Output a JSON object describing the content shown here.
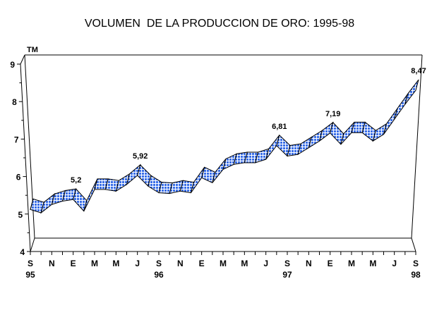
{
  "chart_data": {
    "type": "area",
    "title": "VOLUMEN  DE LA PRODUCCION DE ORO: 1995-98",
    "ylabel": "TM",
    "xlabel": "",
    "ylim": [
      4,
      9
    ],
    "yticks": [
      "4",
      "5",
      "6",
      "7",
      "8",
      "9"
    ],
    "x_month_labels": [
      "S",
      "N",
      "E",
      "M",
      "M",
      "J",
      "S",
      "N",
      "E",
      "M",
      "M",
      "J",
      "S",
      "N",
      "E",
      "M",
      "M",
      "J",
      "S"
    ],
    "x_year_labels": [
      {
        "at": 0,
        "label": "95"
      },
      {
        "at": 12,
        "label": "96"
      },
      {
        "at": 24,
        "label": "97"
      },
      {
        "at": 36,
        "label": "98"
      }
    ],
    "series": [
      {
        "name": "Volumen",
        "values": [
          4.9,
          4.8,
          5.05,
          5.15,
          5.2,
          4.85,
          5.5,
          5.5,
          5.45,
          5.65,
          5.92,
          5.6,
          5.4,
          5.38,
          5.45,
          5.4,
          5.85,
          5.7,
          6.1,
          6.25,
          6.3,
          6.3,
          6.4,
          6.81,
          6.5,
          6.55,
          6.75,
          6.95,
          7.19,
          6.85,
          7.2,
          7.2,
          6.95,
          7.15,
          7.6,
          8.05,
          8.47
        ]
      }
    ],
    "data_labels": [
      {
        "index": 4,
        "label": "5,2"
      },
      {
        "index": 10,
        "label": "5,92"
      },
      {
        "index": 23,
        "label": "6,81"
      },
      {
        "index": 28,
        "label": "7,19"
      },
      {
        "index": 36,
        "label": "8,47"
      }
    ],
    "colors": {
      "fill": "#3a6fe8",
      "grid": "#ffffff",
      "line": "#000000"
    }
  }
}
